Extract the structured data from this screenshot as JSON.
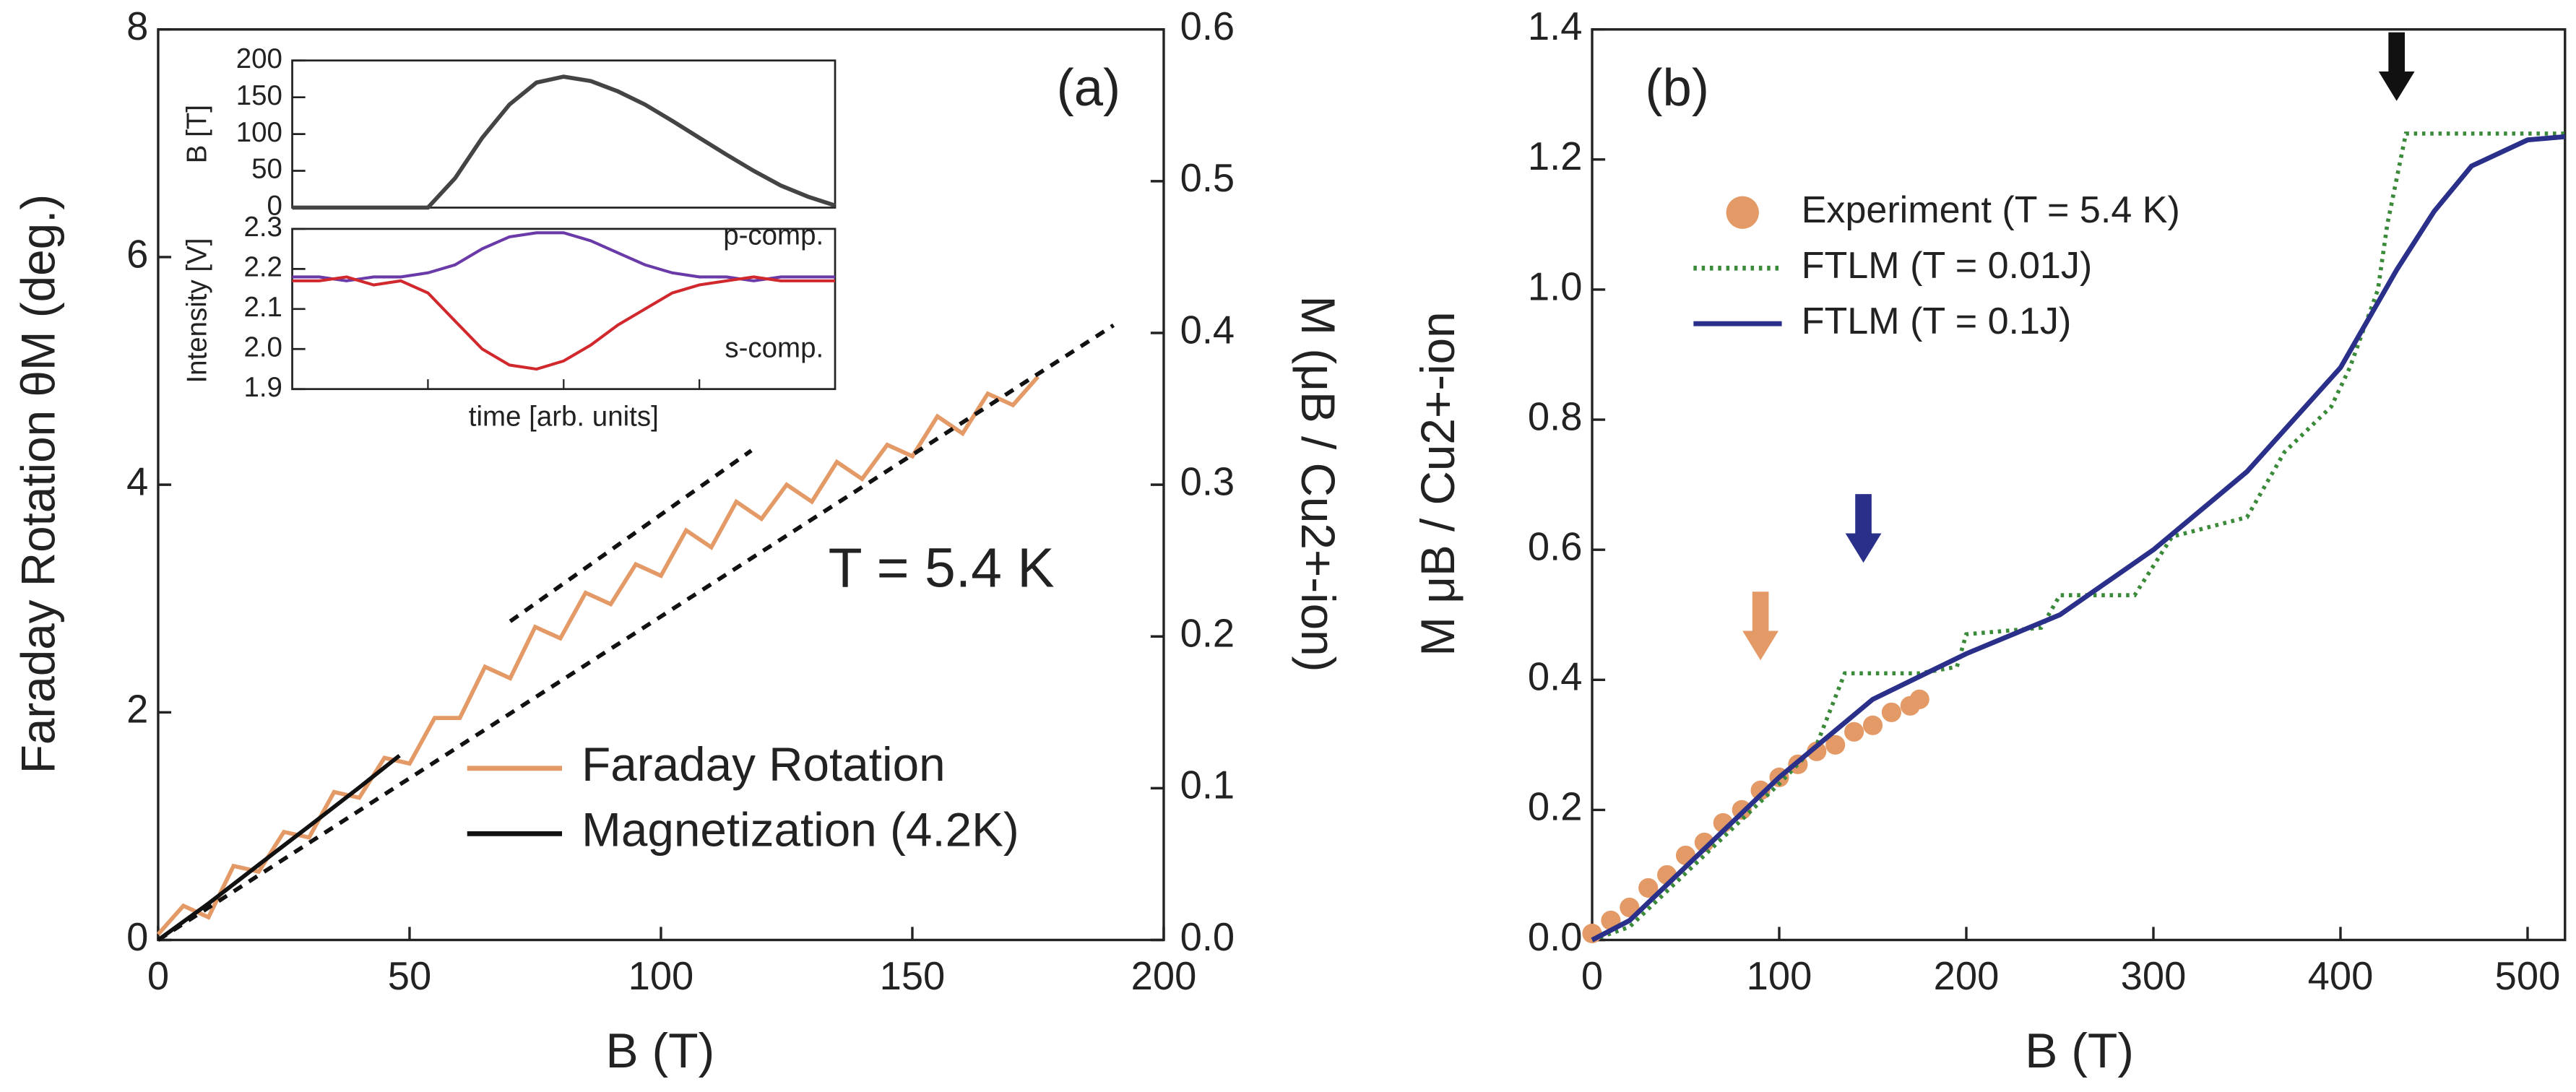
{
  "chart_data": [
    {
      "type": "line",
      "xlabel": "B (T)",
      "ylabel": "Faraday Rotation θM (deg.)",
      "y2label": "M (μB / Cu2+-ion)",
      "annotations": [
        "(a)",
        "T = 5.4 K"
      ],
      "xlim": [
        0,
        200
      ],
      "xticks": [
        0,
        50,
        100,
        150,
        200
      ],
      "ylim": [
        0,
        8
      ],
      "yticks": [
        0,
        2,
        4,
        6,
        8
      ],
      "y2lim": [
        0,
        0.6
      ],
      "y2ticks": [
        {
          "value": 0,
          "label": "0.0"
        },
        0.1,
        0.2,
        0.3,
        0.4,
        0.5,
        0.6
      ],
      "legend": "lower right",
      "series": [
        {
          "name": "Faraday Rotation",
          "color": "#e39a66",
          "style": "line",
          "x": [
            0,
            5,
            10,
            15,
            20,
            25,
            30,
            35,
            40,
            45,
            50,
            55,
            60,
            65,
            70,
            75,
            80,
            85,
            90,
            95,
            100,
            105,
            110,
            115,
            120,
            125,
            130,
            135,
            140,
            145,
            150,
            155,
            160,
            165,
            170,
            175
          ],
          "values": [
            0.05,
            0.3,
            0.2,
            0.65,
            0.6,
            0.95,
            0.9,
            1.3,
            1.25,
            1.6,
            1.55,
            1.95,
            1.95,
            2.4,
            2.3,
            2.75,
            2.65,
            3.05,
            2.95,
            3.3,
            3.2,
            3.6,
            3.45,
            3.85,
            3.7,
            4.0,
            3.85,
            4.2,
            4.05,
            4.35,
            4.25,
            4.6,
            4.45,
            4.8,
            4.7,
            4.95
          ]
        },
        {
          "name": "Magnetization (4.2K)",
          "color": "#111111",
          "style": "line",
          "x": [
            0,
            10,
            20,
            30,
            40,
            48
          ],
          "values": [
            0,
            0.32,
            0.66,
            1.0,
            1.34,
            1.62
          ]
        },
        {
          "color": "#111111",
          "style": "dashed",
          "x": [
            0,
            190
          ],
          "values": [
            0,
            5.4
          ]
        },
        {
          "color": "#111111",
          "style": "dashed",
          "x": [
            70,
            118
          ],
          "values": [
            2.8,
            4.3
          ]
        }
      ]
    },
    {
      "type": "line",
      "ylabel": "B [T]",
      "ylim": [
        0,
        200
      ],
      "yticks": [
        0,
        50,
        100,
        150,
        200
      ],
      "series": [
        {
          "color": "#444444",
          "style": "line",
          "values": [
            0,
            0,
            0,
            0,
            0,
            0,
            40,
            95,
            140,
            170,
            178,
            172,
            158,
            140,
            118,
            95,
            72,
            50,
            30,
            15,
            3
          ]
        }
      ]
    },
    {
      "type": "line",
      "xlabel": "time [arb. units]",
      "ylabel": "Intensity [V]",
      "ylim": [
        1.9,
        2.3
      ],
      "yticks": [
        1.9,
        {
          "value": 2.0,
          "label": "2.0"
        },
        2.1,
        2.2,
        2.3
      ],
      "legend": "inline",
      "series": [
        {
          "name": "p-comp.",
          "color": "#6a3aa8",
          "style": "line",
          "values": [
            2.18,
            2.18,
            2.17,
            2.18,
            2.18,
            2.19,
            2.21,
            2.25,
            2.28,
            2.29,
            2.29,
            2.27,
            2.24,
            2.21,
            2.19,
            2.18,
            2.18,
            2.17,
            2.18,
            2.18,
            2.18
          ]
        },
        {
          "name": "s-comp.",
          "color": "#d0282c",
          "style": "line",
          "values": [
            2.17,
            2.17,
            2.18,
            2.16,
            2.17,
            2.14,
            2.07,
            2.0,
            1.96,
            1.95,
            1.97,
            2.01,
            2.06,
            2.1,
            2.14,
            2.16,
            2.17,
            2.18,
            2.17,
            2.17,
            2.17
          ]
        }
      ]
    },
    {
      "type": "line",
      "xlabel": "B (T)",
      "ylabel": "M  μB / Cu2+-ion",
      "annotations": [
        "(b)"
      ],
      "xlim": [
        0,
        520
      ],
      "xticks": [
        0,
        100,
        200,
        300,
        400,
        500
      ],
      "ylim": [
        0,
        1.4
      ],
      "yticks": [
        {
          "value": 0,
          "label": "0.0"
        },
        0.2,
        0.4,
        0.6,
        0.8,
        {
          "value": 1.0,
          "label": "1.0"
        },
        1.2,
        1.4
      ],
      "legend": "upper left",
      "series": [
        {
          "name": "Experiment (T = 5.4 K)",
          "color": "#e39a66",
          "style": "dots",
          "x": [
            0,
            10,
            20,
            30,
            40,
            50,
            60,
            70,
            80,
            90,
            100,
            110,
            120,
            130,
            140,
            150,
            160,
            170,
            175
          ],
          "values": [
            0.01,
            0.03,
            0.05,
            0.08,
            0.1,
            0.13,
            0.15,
            0.18,
            0.2,
            0.23,
            0.25,
            0.27,
            0.29,
            0.3,
            0.32,
            0.33,
            0.35,
            0.36,
            0.37
          ]
        },
        {
          "name": "FTLM (T = 0.01J)",
          "color": "#3a8a3a",
          "style": "dotted",
          "x": [
            0,
            20,
            100,
            120,
            135,
            175,
            195,
            200,
            240,
            250,
            290,
            310,
            350,
            370,
            395,
            405,
            420,
            425,
            435,
            520
          ],
          "values": [
            0,
            0.02,
            0.24,
            0.3,
            0.41,
            0.41,
            0.42,
            0.47,
            0.48,
            0.53,
            0.53,
            0.62,
            0.65,
            0.75,
            0.82,
            0.88,
            1.0,
            1.1,
            1.24,
            1.24
          ]
        },
        {
          "name": "FTLM (T = 0.1J)",
          "color": "#2a2f8a",
          "style": "line",
          "x": [
            0,
            20,
            100,
            150,
            200,
            250,
            300,
            350,
            400,
            430,
            450,
            470,
            500,
            520
          ],
          "values": [
            0,
            0.03,
            0.25,
            0.37,
            0.44,
            0.5,
            0.6,
            0.72,
            0.88,
            1.03,
            1.12,
            1.19,
            1.23,
            1.235
          ]
        }
      ],
      "arrows": [
        {
          "x": 90,
          "y": 0.43,
          "color": "#e39a66"
        },
        {
          "x": 145,
          "y": 0.58,
          "color": "#2a2f8a"
        },
        {
          "x": 430,
          "y": 1.29,
          "color": "#111111"
        }
      ]
    }
  ]
}
